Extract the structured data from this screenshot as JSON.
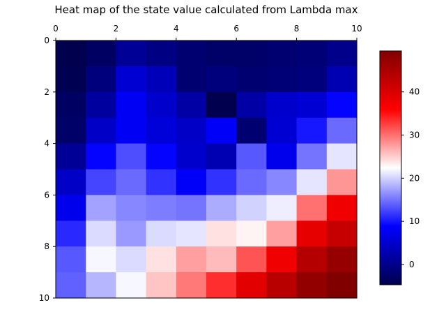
{
  "chart_data": {
    "type": "heatmap",
    "title": "Heat map of the state value calculated from Lambda max",
    "xlabel": "",
    "ylabel": "",
    "x_ticks": [
      "0",
      "2",
      "4",
      "6",
      "8",
      "10"
    ],
    "y_ticks": [
      "0",
      "2",
      "4",
      "6",
      "8",
      "10"
    ],
    "xlim": [
      0,
      10
    ],
    "ylim": [
      0,
      10
    ],
    "x_axis_position": "top",
    "y_axis_inverted": true,
    "grid": false,
    "colormap": "seismic",
    "colorbar": {
      "placement": "right",
      "vmin": -4.7,
      "vmax": 49.5,
      "ticks": [
        "0",
        "10",
        "20",
        "30",
        "40"
      ]
    },
    "rows": 10,
    "cols": 10,
    "values": [
      [
        -4.5,
        -3.0,
        1.0,
        -0.5,
        -2.0,
        -2.5,
        -2.5,
        -2.0,
        -1.5,
        0.0
      ],
      [
        -4.2,
        -1.0,
        5.5,
        3.5,
        -2.0,
        -1.0,
        -2.0,
        -1.5,
        -1.0,
        3.0
      ],
      [
        -3.0,
        1.5,
        8.0,
        5.0,
        2.0,
        -4.5,
        2.0,
        5.0,
        5.5,
        9.0
      ],
      [
        -2.5,
        4.5,
        8.0,
        6.0,
        4.5,
        8.5,
        -2.0,
        5.5,
        10.0,
        14.5
      ],
      [
        1.0,
        9.0,
        13.0,
        9.0,
        5.0,
        3.0,
        13.5,
        7.5,
        15.0,
        21.0
      ],
      [
        4.5,
        12.5,
        14.5,
        11.5,
        8.5,
        11.5,
        14.5,
        16.0,
        21.0,
        28.0
      ],
      [
        7.5,
        17.5,
        16.0,
        15.5,
        15.0,
        18.0,
        20.0,
        21.5,
        30.0,
        37.5
      ],
      [
        11.0,
        20.5,
        17.0,
        20.5,
        21.0,
        24.0,
        23.0,
        27.5,
        38.5,
        42.0
      ],
      [
        13.5,
        22.0,
        20.5,
        24.0,
        27.5,
        26.0,
        31.5,
        37.5,
        44.0,
        47.0
      ],
      [
        14.0,
        18.5,
        22.0,
        25.5,
        29.5,
        33.5,
        39.0,
        43.5,
        47.5,
        49.5
      ]
    ]
  }
}
